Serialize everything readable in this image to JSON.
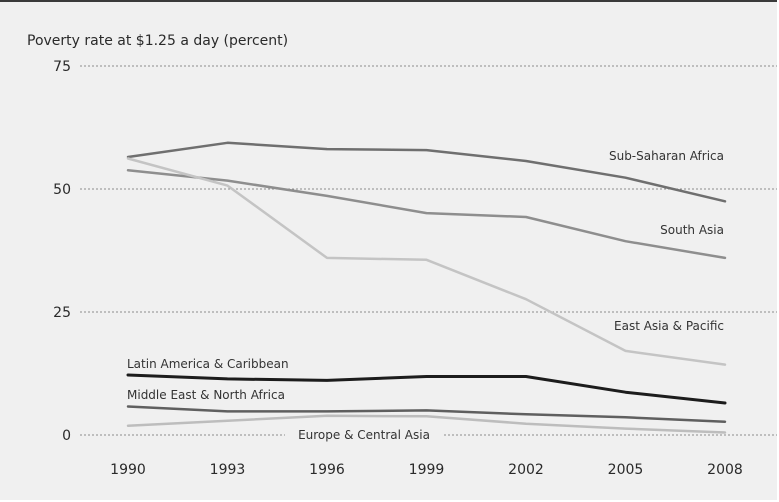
{
  "chart_data": {
    "type": "line",
    "title": "",
    "ylabel": "Poverty rate at $1.25 a day (percent)",
    "xlabel": "",
    "x": [
      1990,
      1993,
      1996,
      1999,
      2002,
      2005,
      2008
    ],
    "x_tick_labels": [
      "1990",
      "1993",
      "1996",
      "1999",
      "2002",
      "2005",
      "2008"
    ],
    "y_ticks": [
      0,
      25,
      50,
      75
    ],
    "y_tick_labels": [
      "0",
      "25",
      "50",
      "75"
    ],
    "ylim": [
      0,
      75
    ],
    "grid": "horizontal dashed",
    "legend": "inline labels",
    "series": [
      {
        "name": "Sub-Saharan Africa",
        "values": [
          56.5,
          59.4,
          58.1,
          57.9,
          55.7,
          52.3,
          47.5
        ],
        "color": "#6f6f6f",
        "width": 2.5
      },
      {
        "name": "South Asia",
        "values": [
          53.8,
          51.7,
          48.6,
          45.1,
          44.3,
          39.4,
          36.0
        ],
        "color": "#8e8e8e",
        "width": 2.5
      },
      {
        "name": "East Asia & Pacific",
        "values": [
          56.2,
          50.7,
          36.0,
          35.6,
          27.6,
          17.1,
          14.3
        ],
        "color": "#c4c4c4",
        "width": 2.5
      },
      {
        "name": "Latin America & Caribbean",
        "values": [
          12.2,
          11.4,
          11.1,
          11.9,
          11.9,
          8.7,
          6.5
        ],
        "color": "#1c1c1c",
        "width": 3
      },
      {
        "name": "Middle East & North Africa",
        "values": [
          5.8,
          4.8,
          4.8,
          5.0,
          4.2,
          3.6,
          2.7
        ],
        "color": "#5f5f5f",
        "width": 2.5
      },
      {
        "name": "Europe & Central Asia",
        "values": [
          1.9,
          2.9,
          3.9,
          3.8,
          2.3,
          1.3,
          0.5
        ],
        "color": "#bdbdbd",
        "width": 2.5
      }
    ]
  }
}
